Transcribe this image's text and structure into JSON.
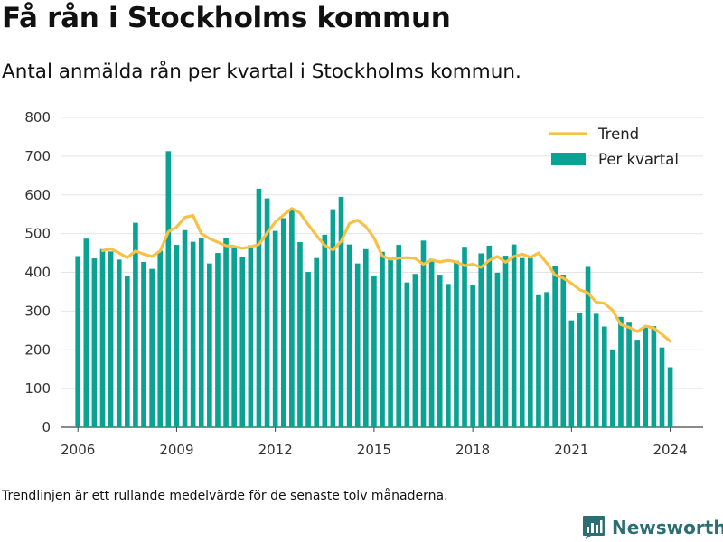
{
  "header": {
    "title": "Få rån i Stockholms kommun",
    "subtitle": "Antal anmälda rån per kvartal i Stockholms kommun."
  },
  "footer": {
    "note": "Trendlinjen är ett rullande medelvärde för de senaste tolv månaderna.",
    "brand": "Newsworthy"
  },
  "colors": {
    "bar": "#0aa293",
    "trend": "#f8c146",
    "grid": "#e4e4e4",
    "brand": "#2c6e73"
  },
  "chart_data": {
    "type": "bar",
    "title": "Få rån i Stockholms kommun",
    "subtitle": "Antal anmälda rån per kvartal i Stockholms kommun.",
    "xlabel": "",
    "ylabel": "",
    "ylim": [
      0,
      800
    ],
    "yticks": [
      0,
      100,
      200,
      300,
      400,
      500,
      600,
      700,
      800
    ],
    "xlim": [
      2005.5,
      2025.0
    ],
    "xticks": [
      2006,
      2009,
      2012,
      2015,
      2018,
      2021,
      2024
    ],
    "xtick_labels": [
      "2006",
      "2009",
      "2012",
      "2015",
      "2018",
      "2021",
      "2024"
    ],
    "grid": true,
    "legend_position": "top-right",
    "x_start": 2006.0,
    "x_step": 0.25,
    "series": [
      {
        "name": "Per kvartal",
        "type": "bar",
        "values": [
          442,
          487,
          436,
          460,
          454,
          433,
          391,
          528,
          427,
          409,
          456,
          713,
          471,
          509,
          479,
          489,
          423,
          450,
          489,
          462,
          439,
          470,
          616,
          591,
          507,
          540,
          563,
          478,
          401,
          437,
          497,
          563,
          595,
          472,
          423,
          460,
          391,
          453,
          434,
          471,
          374,
          396,
          482,
          435,
          394,
          370,
          430,
          466,
          368,
          449,
          469,
          399,
          443,
          472,
          437,
          437,
          341,
          349,
          416,
          394,
          276,
          296,
          414,
          293,
          260,
          201,
          285,
          270,
          226,
          262,
          261,
          206,
          155
        ]
      },
      {
        "name": "Trend",
        "type": "line",
        "x": [
          2006.75,
          2007.0,
          2007.25,
          2007.5,
          2007.75,
          2008.0,
          2008.25,
          2008.5,
          2008.75,
          2009.0,
          2009.25,
          2009.5,
          2009.75,
          2010.0,
          2010.25,
          2010.5,
          2010.75,
          2011.0,
          2011.25,
          2011.5,
          2011.75,
          2012.0,
          2012.25,
          2012.5,
          2012.75,
          2013.0,
          2013.25,
          2013.5,
          2013.75,
          2014.0,
          2014.25,
          2014.5,
          2014.75,
          2015.0,
          2015.25,
          2015.5,
          2015.75,
          2016.0,
          2016.25,
          2016.5,
          2016.75,
          2017.0,
          2017.25,
          2017.5,
          2017.75,
          2018.0,
          2018.25,
          2018.5,
          2018.75,
          2019.0,
          2019.25,
          2019.5,
          2019.75,
          2020.0,
          2020.25,
          2020.5,
          2020.75,
          2021.0,
          2021.25,
          2021.5,
          2021.75,
          2022.0,
          2022.25,
          2022.5,
          2022.75,
          2023.0,
          2023.25,
          2023.5,
          2023.75,
          2024.0
        ],
        "values": [
          456,
          461,
          450,
          438,
          455,
          447,
          441,
          455,
          505,
          517,
          542,
          547,
          500,
          487,
          478,
          469,
          467,
          462,
          466,
          472,
          502,
          530,
          548,
          565,
          553,
          523,
          495,
          470,
          458,
          480,
          526,
          535,
          518,
          489,
          442,
          434,
          437,
          438,
          436,
          421,
          432,
          427,
          431,
          427,
          417,
          421,
          413,
          431,
          441,
          426,
          441,
          447,
          439,
          450,
          424,
          393,
          385,
          372,
          355,
          347,
          323,
          320,
          302,
          265,
          258,
          247,
          261,
          256,
          240,
          222
        ]
      }
    ]
  }
}
